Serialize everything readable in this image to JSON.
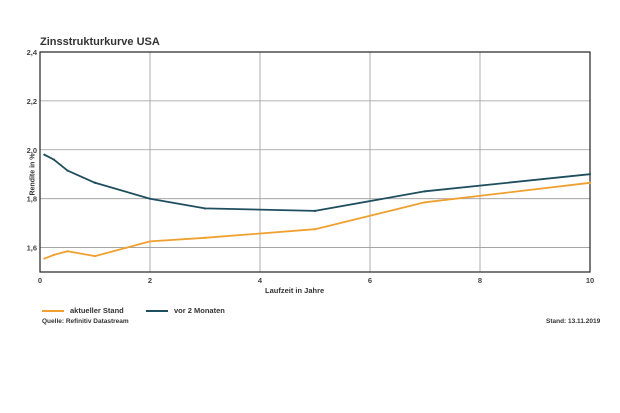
{
  "chart_data": {
    "type": "line",
    "title": "Zinsstrukturkurve USA",
    "xlabel": "Laufzeit in Jahre",
    "ylabel": "Rendite in %",
    "xlim": [
      0,
      10
    ],
    "ylim": [
      1.5,
      2.4
    ],
    "xticks": [
      0,
      2,
      4,
      6,
      8,
      10
    ],
    "yticks": [
      1.6,
      1.8,
      2.0,
      2.2,
      2.4
    ],
    "xtick_labels": [
      "0",
      "2",
      "4",
      "6",
      "8",
      "10"
    ],
    "ytick_labels": [
      "1,6",
      "1,8",
      "2,0",
      "2,2",
      "2,4"
    ],
    "grid": true,
    "legend_position": "bottom-left",
    "series": [
      {
        "name": "aktueller Stand",
        "color": "#f0a030",
        "x": [
          0.08,
          0.25,
          0.5,
          1,
          2,
          3,
          5,
          7,
          10
        ],
        "y": [
          1.555,
          1.57,
          1.585,
          1.565,
          1.625,
          1.64,
          1.675,
          1.785,
          1.865
        ]
      },
      {
        "name": "vor 2 Monaten",
        "color": "#1f4e5f",
        "x": [
          0.08,
          0.25,
          0.5,
          1,
          2,
          3,
          5,
          7,
          10
        ],
        "y": [
          1.98,
          1.96,
          1.915,
          1.865,
          1.8,
          1.76,
          1.75,
          1.83,
          1.9
        ]
      }
    ]
  },
  "footer": {
    "source": "Quelle: Refinitiv Datastream",
    "date": "Stand: 13.11.2019"
  }
}
